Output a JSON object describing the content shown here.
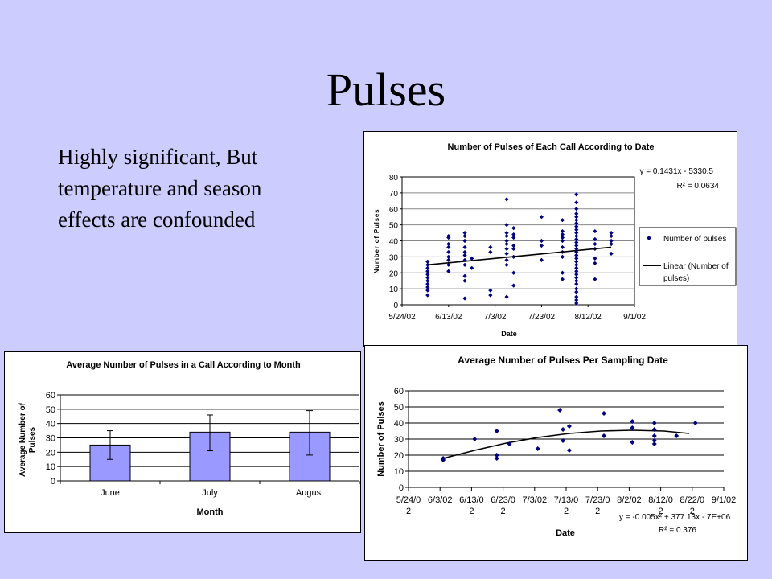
{
  "slide": {
    "title": "Pulses",
    "bullet_lines": [
      "Highly significant, But",
      "temperature and season",
      "effects are confounded"
    ]
  },
  "colors": {
    "background": "#ccccff",
    "marker": "#000080",
    "bar_fill": "#9999ff",
    "line": "#000000"
  },
  "chart_data": [
    {
      "type": "scatter",
      "title": "Number of Pulses of Each Call According to Date",
      "xlabel": "Date",
      "ylabel": "Number of Pulses",
      "x_ticks": [
        "5/24/02",
        "6/13/02",
        "7/3/02",
        "7/23/02",
        "8/12/02",
        "9/1/02"
      ],
      "xlim": [
        "2002-05-24",
        "2002-09-01"
      ],
      "ylim": [
        0,
        80
      ],
      "y_ticks": [
        "0",
        "10",
        "20",
        "30",
        "40",
        "50",
        "60",
        "70",
        "80"
      ],
      "grid": "horizontal",
      "legend_position": "right",
      "legend": [
        "Number of pulses",
        "Linear (Number of",
        "pulses)"
      ],
      "equation": "y = 0.1431x - 5330.5",
      "r_squared": "R² = 0.0634",
      "trendline": {
        "type": "linear",
        "x": [
          "2002-06-04",
          "2002-08-22"
        ],
        "y": [
          25,
          36
        ]
      },
      "series": [
        {
          "name": "Number of pulses",
          "points": [
            [
              "2002-06-04",
              6
            ],
            [
              "2002-06-04",
              9
            ],
            [
              "2002-06-04",
              11
            ],
            [
              "2002-06-04",
              13
            ],
            [
              "2002-06-04",
              15
            ],
            [
              "2002-06-04",
              17
            ],
            [
              "2002-06-04",
              19
            ],
            [
              "2002-06-04",
              21
            ],
            [
              "2002-06-04",
              23
            ],
            [
              "2002-06-04",
              25
            ],
            [
              "2002-06-04",
              27
            ],
            [
              "2002-06-13",
              21
            ],
            [
              "2002-06-13",
              25
            ],
            [
              "2002-06-13",
              28
            ],
            [
              "2002-06-13",
              30
            ],
            [
              "2002-06-13",
              33
            ],
            [
              "2002-06-13",
              36
            ],
            [
              "2002-06-13",
              38
            ],
            [
              "2002-06-13",
              42
            ],
            [
              "2002-06-13",
              43
            ],
            [
              "2002-06-20",
              4
            ],
            [
              "2002-06-20",
              15
            ],
            [
              "2002-06-20",
              18
            ],
            [
              "2002-06-20",
              25
            ],
            [
              "2002-06-20",
              28
            ],
            [
              "2002-06-20",
              31
            ],
            [
              "2002-06-20",
              33
            ],
            [
              "2002-06-20",
              36
            ],
            [
              "2002-06-20",
              40
            ],
            [
              "2002-06-20",
              43
            ],
            [
              "2002-06-20",
              45
            ],
            [
              "2002-06-23",
              23
            ],
            [
              "2002-06-23",
              29
            ],
            [
              "2002-07-01",
              6
            ],
            [
              "2002-07-01",
              9
            ],
            [
              "2002-07-01",
              33
            ],
            [
              "2002-07-01",
              36
            ],
            [
              "2002-07-08",
              5
            ],
            [
              "2002-07-08",
              25
            ],
            [
              "2002-07-08",
              28
            ],
            [
              "2002-07-08",
              32
            ],
            [
              "2002-07-08",
              35
            ],
            [
              "2002-07-08",
              38
            ],
            [
              "2002-07-08",
              40
            ],
            [
              "2002-07-08",
              43
            ],
            [
              "2002-07-08",
              45
            ],
            [
              "2002-07-08",
              50
            ],
            [
              "2002-07-08",
              66
            ],
            [
              "2002-07-11",
              12
            ],
            [
              "2002-07-11",
              20
            ],
            [
              "2002-07-11",
              30
            ],
            [
              "2002-07-11",
              35
            ],
            [
              "2002-07-11",
              37
            ],
            [
              "2002-07-11",
              42
            ],
            [
              "2002-07-11",
              44
            ],
            [
              "2002-07-11",
              48
            ],
            [
              "2002-07-23",
              28
            ],
            [
              "2002-07-23",
              37
            ],
            [
              "2002-07-23",
              40
            ],
            [
              "2002-07-23",
              55
            ],
            [
              "2002-08-01",
              16
            ],
            [
              "2002-08-01",
              20
            ],
            [
              "2002-08-01",
              30
            ],
            [
              "2002-08-01",
              33
            ],
            [
              "2002-08-01",
              36
            ],
            [
              "2002-08-01",
              40
            ],
            [
              "2002-08-01",
              42
            ],
            [
              "2002-08-01",
              44
            ],
            [
              "2002-08-01",
              46
            ],
            [
              "2002-08-01",
              53
            ],
            [
              "2002-08-07",
              1
            ],
            [
              "2002-08-07",
              3
            ],
            [
              "2002-08-07",
              5
            ],
            [
              "2002-08-07",
              8
            ],
            [
              "2002-08-07",
              10
            ],
            [
              "2002-08-07",
              13
            ],
            [
              "2002-08-07",
              15
            ],
            [
              "2002-08-07",
              17
            ],
            [
              "2002-08-07",
              19
            ],
            [
              "2002-08-07",
              21
            ],
            [
              "2002-08-07",
              23
            ],
            [
              "2002-08-07",
              25
            ],
            [
              "2002-08-07",
              27
            ],
            [
              "2002-08-07",
              29
            ],
            [
              "2002-08-07",
              31
            ],
            [
              "2002-08-07",
              33
            ],
            [
              "2002-08-07",
              35
            ],
            [
              "2002-08-07",
              37
            ],
            [
              "2002-08-07",
              39
            ],
            [
              "2002-08-07",
              41
            ],
            [
              "2002-08-07",
              43
            ],
            [
              "2002-08-07",
              45
            ],
            [
              "2002-08-07",
              47
            ],
            [
              "2002-08-07",
              49
            ],
            [
              "2002-08-07",
              51
            ],
            [
              "2002-08-07",
              53
            ],
            [
              "2002-08-07",
              55
            ],
            [
              "2002-08-07",
              57
            ],
            [
              "2002-08-07",
              60
            ],
            [
              "2002-08-07",
              64
            ],
            [
              "2002-08-07",
              69
            ],
            [
              "2002-08-15",
              16
            ],
            [
              "2002-08-15",
              26
            ],
            [
              "2002-08-15",
              29
            ],
            [
              "2002-08-15",
              35
            ],
            [
              "2002-08-15",
              38
            ],
            [
              "2002-08-15",
              41
            ],
            [
              "2002-08-15",
              46
            ],
            [
              "2002-08-22",
              32
            ],
            [
              "2002-08-22",
              38
            ],
            [
              "2002-08-22",
              40
            ],
            [
              "2002-08-22",
              43
            ],
            [
              "2002-08-22",
              45
            ]
          ]
        }
      ]
    },
    {
      "type": "bar",
      "title": "Average Number of Pulses in a Call According to  Month",
      "xlabel": "Month",
      "ylabel": "Average Number of Pulses",
      "ylabel_lines": [
        "Average Number of",
        "Pulses"
      ],
      "categories": [
        "June",
        "July",
        "August"
      ],
      "values": [
        25,
        34,
        34
      ],
      "error_low": [
        15,
        21,
        18
      ],
      "error_high": [
        35,
        46,
        49
      ],
      "ylim": [
        0,
        60
      ],
      "y_ticks": [
        "0",
        "10",
        "20",
        "30",
        "40",
        "50",
        "60"
      ],
      "grid": "horizontal"
    },
    {
      "type": "scatter",
      "title": "Average Number of Pulses Per Sampling Date",
      "xlabel": "Date",
      "ylabel": "Number of Pulses",
      "x_ticks": [
        [
          "5/24/0",
          "2"
        ],
        [
          "6/3/02",
          ""
        ],
        [
          "6/13/0",
          "2"
        ],
        [
          "6/23/0",
          "2"
        ],
        [
          "7/3/02",
          ""
        ],
        [
          "7/13/0",
          "2"
        ],
        [
          "7/23/0",
          "2"
        ],
        [
          "8/2/02",
          ""
        ],
        [
          "8/12/0",
          "2"
        ],
        [
          "8/22/0",
          "2"
        ],
        [
          "9/1/02",
          ""
        ]
      ],
      "xlim": [
        "2002-05-24",
        "2002-09-01"
      ],
      "ylim": [
        0,
        60
      ],
      "y_ticks": [
        "0",
        "10",
        "20",
        "30",
        "40",
        "50",
        "60"
      ],
      "grid": "horizontal",
      "equation": "y = -0.005x² + 377.13x - 7E+06",
      "r_squared": "R² = 0.376",
      "trendline": {
        "type": "polynomial",
        "x": [
          "2002-06-04",
          "2002-06-14",
          "2002-06-24",
          "2002-07-04",
          "2002-07-14",
          "2002-07-24",
          "2002-08-03",
          "2002-08-13",
          "2002-08-21"
        ],
        "y": [
          18,
          23,
          27.5,
          31,
          33.5,
          35,
          35.5,
          35,
          33.5
        ]
      },
      "series": [
        {
          "name": "",
          "points": [
            [
              "2002-06-04",
              18
            ],
            [
              "2002-06-04",
              17
            ],
            [
              "2002-06-14",
              30
            ],
            [
              "2002-06-21",
              35
            ],
            [
              "2002-06-21",
              20
            ],
            [
              "2002-06-21",
              18
            ],
            [
              "2002-06-25",
              27
            ],
            [
              "2002-07-04",
              24
            ],
            [
              "2002-07-11",
              48
            ],
            [
              "2002-07-12",
              36
            ],
            [
              "2002-07-12",
              29
            ],
            [
              "2002-07-14",
              38
            ],
            [
              "2002-07-14",
              23
            ],
            [
              "2002-07-25",
              46
            ],
            [
              "2002-07-25",
              32
            ],
            [
              "2002-08-03",
              41
            ],
            [
              "2002-08-03",
              37
            ],
            [
              "2002-08-03",
              28
            ],
            [
              "2002-08-10",
              40
            ],
            [
              "2002-08-10",
              36
            ],
            [
              "2002-08-10",
              32
            ],
            [
              "2002-08-10",
              29
            ],
            [
              "2002-08-10",
              27
            ],
            [
              "2002-08-17",
              32
            ],
            [
              "2002-08-23",
              40
            ]
          ]
        }
      ]
    }
  ]
}
